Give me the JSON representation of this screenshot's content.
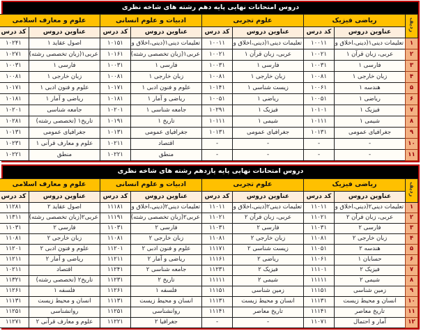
{
  "colors": {
    "border": "#c00000",
    "titlebar_bg": "#000000",
    "header_bg": "#ffc000",
    "subheader_bg": "#fdeedd",
    "rownum_bg": "#f4b183",
    "cell_bg": "#fffdf7",
    "rownum_text": "#9c0006"
  },
  "columns": {
    "row_header": "ردیف",
    "title_header": "عناوین دروس",
    "code_header": "کد درس"
  },
  "tables": [
    {
      "title": "دروس امتحانات نهایی پایه دهم رشته های شاخه نظری",
      "groups": [
        "ریاضی فیزیک",
        "علوم تجربی",
        "ادبیات و علوم انسانی",
        "علوم و معارف اسلامی"
      ],
      "rows": [
        {
          "num": "۱",
          "courses": [
            {
              "title": "تعلیمات دینی۱(دینی،اخلاق و قرآن)",
              "code": "۱۰۰۱۱"
            },
            {
              "title": "تعلیمات دینی۱(دینی،اخلاق و قرآن)",
              "code": "۱۰۰۱۱"
            },
            {
              "title": "تعلیمات دینی۱(دینی،اخلاق و قرآن)",
              "code": "۱۰۱۵۱"
            },
            {
              "title": "اصول عقاید ۱",
              "code": "۱۰۲۴۱"
            }
          ]
        },
        {
          "num": "۲",
          "courses": [
            {
              "title": "عربی، زبان قرآن ۱",
              "code": "۱۰۰۲۱"
            },
            {
              "title": "عربی، زبان قرآن ۱",
              "code": "۱۰۰۲۱"
            },
            {
              "title": "عربی۱(زبان تخصصی رشته)",
              "code": "۱۰۱۶۱"
            },
            {
              "title": "عربی۱(زبان تخصصی رشته)",
              "code": "۱۰۲۷۱"
            }
          ]
        },
        {
          "num": "۳",
          "courses": [
            {
              "title": "فارسی ۱",
              "code": "۱۰۰۳۱"
            },
            {
              "title": "فارسی ۱",
              "code": "۱۰۰۳۱"
            },
            {
              "title": "فارسی ۱",
              "code": "۱۰۰۳۱"
            },
            {
              "title": "فارسی ۱",
              "code": "۱۰۰۳۱"
            }
          ]
        },
        {
          "num": "۴",
          "courses": [
            {
              "title": "زبان خارجی ۱",
              "code": "۱۰۰۸۱"
            },
            {
              "title": "زبان خارجی ۱",
              "code": "۱۰۰۸۱"
            },
            {
              "title": "زبان خارجی ۱",
              "code": "۱۰۰۸۱"
            },
            {
              "title": "زبان خارجی ۱",
              "code": "۱۰۰۸۱"
            }
          ]
        },
        {
          "num": "۵",
          "courses": [
            {
              "title": "هندسه ۱",
              "code": "۱۰۰۶۱"
            },
            {
              "title": "زیست شناسی ۱",
              "code": "۱۰۱۴۱"
            },
            {
              "title": "علوم و فنون ادبی ۱",
              "code": "۱۰۱۷۱"
            },
            {
              "title": "علوم و فنون ادبی ۱",
              "code": "۱۰۱۷۱"
            }
          ]
        },
        {
          "num": "۶",
          "courses": [
            {
              "title": "ریاضی ۱",
              "code": "۱۰۰۵۱"
            },
            {
              "title": "ریاضی ۱",
              "code": "۱۰۰۵۱"
            },
            {
              "title": "ریاضی و آمار ۱",
              "code": "۱۰۱۸۱"
            },
            {
              "title": "ریاضی و آمار ۱",
              "code": "۱۰۱۸۱"
            }
          ]
        },
        {
          "num": "۷",
          "courses": [
            {
              "title": "فیزیک ۱",
              "code": "۱۰۱۰۱"
            },
            {
              "title": "فیزیک ۱",
              "code": "۱۰۲۹۱"
            },
            {
              "title": "جامعه شناسی ۱",
              "code": "۱۰۲۰۱"
            },
            {
              "title": "جامعه شناسی",
              "code": "۱۰۲۰۱"
            }
          ]
        },
        {
          "num": "۸",
          "courses": [
            {
              "title": "شیمی ۱",
              "code": "۱۰۱۱۱"
            },
            {
              "title": "شیمی ۱",
              "code": "۱۰۱۱۱"
            },
            {
              "title": "تاریخ ۱",
              "code": "۱۰۱۹۱"
            },
            {
              "title": "تاریخ۱ (تخصصی رشته)",
              "code": "۱۰۲۸۱"
            }
          ]
        },
        {
          "num": "۹",
          "courses": [
            {
              "title": "جغرافیای عمومی",
              "code": "۱۰۱۳۱"
            },
            {
              "title": "جغرافیای عمومی",
              "code": "۱۰۱۳۱"
            },
            {
              "title": "جغرافیای عمومی",
              "code": "۱۰۱۳۱"
            },
            {
              "title": "جغرافیای عمومی",
              "code": "۱۰۱۳۱"
            }
          ]
        },
        {
          "num": "۱۰",
          "courses": [
            {
              "title": "-",
              "code": "-"
            },
            {
              "title": "-",
              "code": "-"
            },
            {
              "title": "اقتصاد",
              "code": "۱۰۲۱۱"
            },
            {
              "title": "علوم و معارف قرآنی ۱",
              "code": "۱۰۲۳۱"
            }
          ]
        },
        {
          "num": "۱۱",
          "courses": [
            {
              "title": "-",
              "code": "-"
            },
            {
              "title": "-",
              "code": "-"
            },
            {
              "title": "منطق",
              "code": "۱۰۲۲۱"
            },
            {
              "title": "منطق",
              "code": "۱۰۲۲۱"
            }
          ]
        }
      ]
    },
    {
      "title": "دروس امتحانات نهایی پایه یازدهم رشته های شاخه نظری",
      "groups": [
        "ریاضی فیزیک",
        "علوم تجربی",
        "ادبیات و علوم انسانی",
        "علوم و معارف اسلامی"
      ],
      "rows": [
        {
          "num": "۱",
          "courses": [
            {
              "title": "تعلیمات دینی۲(دینی،اخلاق و قرآن)",
              "code": "۱۱۰۱۱"
            },
            {
              "title": "تعلیمات دینی۲(دینی،اخلاق و قرآن)",
              "code": "۱۱۰۱۱"
            },
            {
              "title": "تعلیمات دینی۲(دینی،اخلاق و قرآن)",
              "code": "۱۱۱۸۱"
            },
            {
              "title": "اصول عقاید ۲",
              "code": "۱۱۲۸۱"
            }
          ]
        },
        {
          "num": "۲",
          "courses": [
            {
              "title": "عربی، زبان قرآن ۲",
              "code": "۱۱۰۲۱"
            },
            {
              "title": "عربی، زبان قرآن ۲",
              "code": "۱۱۰۲۱"
            },
            {
              "title": "عربی۲(زبان تخصصی رشته)",
              "code": "۱۱۱۹۱"
            },
            {
              "title": "عربی۲(زبان تخصصی رشته)",
              "code": "۱۱۳۱۱"
            }
          ]
        },
        {
          "num": "۳",
          "courses": [
            {
              "title": "فارسی ۲",
              "code": "۱۱۰۳۱"
            },
            {
              "title": "فارسی ۲",
              "code": "۱۱۰۳۱"
            },
            {
              "title": "فارسی ۲",
              "code": "۱۱۰۳۱"
            },
            {
              "title": "فارسی ۲",
              "code": "۱۱۰۳۱"
            }
          ]
        },
        {
          "num": "۴",
          "courses": [
            {
              "title": "زبان خارجی ۲",
              "code": "۱۱۰۸۱"
            },
            {
              "title": "زبان خارجی ۲",
              "code": "۱۱۰۸۱"
            },
            {
              "title": "زبان خارجی ۲",
              "code": "۱۱۰۸۱"
            },
            {
              "title": "زبان خارجی ۲",
              "code": "۱۱۰۸۱"
            }
          ]
        },
        {
          "num": "۵",
          "courses": [
            {
              "title": "هندسه ۲",
              "code": "۱۱۰۵۱"
            },
            {
              "title": "زیست شناسی ۲",
              "code": "۱۱۱۷۱"
            },
            {
              "title": "علوم و فنون ادبی ۲",
              "code": "۱۱۲۰۱"
            },
            {
              "title": "علوم و فنون ادبی ۲",
              "code": "۱۱۲۰۱"
            }
          ]
        },
        {
          "num": "۶",
          "courses": [
            {
              "title": "حسابان ۱",
              "code": "۱۱۰۶۱"
            },
            {
              "title": "ریاضی ۲",
              "code": "۱۱۱۶۱"
            },
            {
              "title": "ریاضی و آمار ۲",
              "code": "۱۱۲۱۱"
            },
            {
              "title": "ریاضی و آمار ۲",
              "code": "۱۱۲۱۱"
            }
          ]
        },
        {
          "num": "۷",
          "courses": [
            {
              "title": "فیزیک ۲",
              "code": "۱۱۱۰۱"
            },
            {
              "title": "فیزیک ۲",
              "code": "۱۱۲۳۱"
            },
            {
              "title": "جامعه شناسی ۲",
              "code": "۱۱۲۴۱"
            },
            {
              "title": "اقتصاد",
              "code": "۱۰۲۱۱"
            }
          ]
        },
        {
          "num": "۸",
          "courses": [
            {
              "title": "شیمی ۲",
              "code": "۱۱۱۱۱"
            },
            {
              "title": "شیمی ۲",
              "code": "۱۱۱۱۱"
            },
            {
              "title": "تاریخ ۲",
              "code": "۱۱۲۳۱"
            },
            {
              "title": "تاریخ۲ (تخصصی رشته)",
              "code": "۱۱۳۲۱"
            }
          ]
        },
        {
          "num": "۹",
          "courses": [
            {
              "title": "زمین شناسی",
              "code": "۱۱۱۵۱"
            },
            {
              "title": "زمین شناسی",
              "code": "۱۱۱۵۱"
            },
            {
              "title": "فلسفه ۱",
              "code": "۱۱۲۶۱"
            },
            {
              "title": "فلسفه ۱",
              "code": "۱۱۲۶۱"
            }
          ]
        },
        {
          "num": "۱۰",
          "courses": [
            {
              "title": "انسان و محیط زیست",
              "code": "۱۱۱۳۱"
            },
            {
              "title": "انسان و محیط زیست",
              "code": "۱۱۱۳۱"
            },
            {
              "title": "انسان و محیط زیست",
              "code": "۱۱۱۳۱"
            },
            {
              "title": "انسان و محیط زیست",
              "code": "۱۱۱۳۱"
            }
          ]
        },
        {
          "num": "۱۱",
          "courses": [
            {
              "title": "تاریخ معاصر",
              "code": "۱۱۱۴۱"
            },
            {
              "title": "تاریخ معاصر",
              "code": "۱۱۱۴۱"
            },
            {
              "title": "روانشناسی",
              "code": "۱۱۲۵۱"
            },
            {
              "title": "روانشناسی",
              "code": "۱۱۲۵۱"
            }
          ]
        },
        {
          "num": "۱۲",
          "courses": [
            {
              "title": "آمار و احتمال",
              "code": "۱۱۰۷۱"
            },
            {
              "title": "-",
              "code": "-"
            },
            {
              "title": "جغرافیا ۲",
              "code": "۱۱۲۲۱"
            },
            {
              "title": "علوم و معارف قرآنی ۲",
              "code": "۱۱۲۷۱"
            }
          ]
        }
      ]
    }
  ]
}
